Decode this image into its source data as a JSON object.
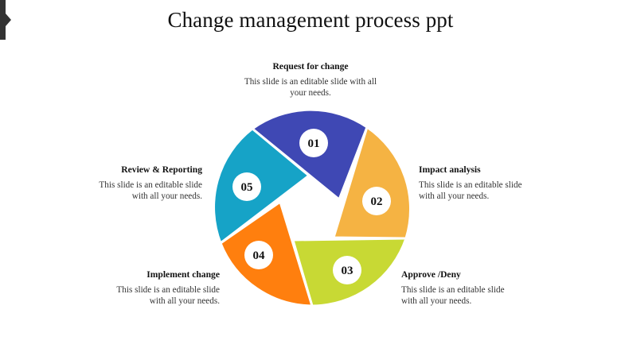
{
  "title": "Change management process ppt",
  "steps": [
    {
      "number": "01",
      "heading": "Request for change",
      "description": "This slide is an editable slide with all your needs.",
      "color": "#3F48B4"
    },
    {
      "number": "02",
      "heading": "Impact analysis",
      "description": "This slide is an editable slide with all your needs.",
      "color": "#F5B343"
    },
    {
      "number": "03",
      "heading": "Approve /Deny",
      "description": "This slide is an editable slide with all your needs.",
      "color": "#C8D934"
    },
    {
      "number": "04",
      "heading": "Implement change",
      "description": "This slide is an editable slide with all your needs.",
      "color": "#FF7F0E"
    },
    {
      "number": "05",
      "heading": "Review & Reporting",
      "description": "This slide is an editable slide with all your needs.",
      "color": "#16A3C7"
    }
  ],
  "accent_colors": {
    "marker": "#333333",
    "badge": "#ffffff"
  }
}
